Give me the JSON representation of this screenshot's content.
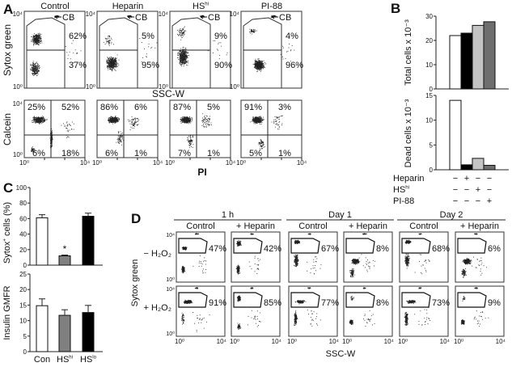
{
  "chart_data": [
    {
      "panel": "A",
      "type": "scatter",
      "columns": [
        {
          "name": "Control",
          "sup": ""
        },
        {
          "name": "Heparin",
          "sup": ""
        },
        {
          "name": "HS",
          "sup": "hi"
        },
        {
          "name": "PI-88",
          "sup": ""
        }
      ],
      "ticks": [
        "10⁰",
        "10⁴"
      ],
      "top_row": {
        "ylabel": "Sytox green",
        "xlabel": "SSC-W",
        "gate_label": "CB",
        "upper_gate": [
          "62%",
          "5%",
          "9%",
          "4%"
        ],
        "lower_gate": [
          "37%",
          "95%",
          "90%",
          "96%"
        ]
      },
      "bottom_row": {
        "ylabel": "Calcein",
        "xlabel": "PI",
        "quadrants": [
          {
            "ul": "25%",
            "ur": "52%",
            "ll": "6%",
            "lr": "18%"
          },
          {
            "ul": "86%",
            "ur": "6%",
            "ll": "6%",
            "lr": "1%"
          },
          {
            "ul": "87%",
            "ur": "5%",
            "ll": "7%",
            "lr": "1%"
          },
          {
            "ul": "91%",
            "ur": "3%",
            "ll": "5%",
            "lr": "1%"
          }
        ]
      }
    },
    {
      "panel": "B",
      "type": "bar",
      "colors": [
        "#ffffff",
        "#000000",
        "#c4c4c4",
        "#6e6e6e"
      ],
      "total": {
        "ylabel": "Total cells x 10⁻³",
        "ylim": [
          0,
          30
        ],
        "yticks": [
          "0",
          "10",
          "20",
          "30"
        ],
        "values": [
          22,
          23,
          26.2,
          27.7
        ]
      },
      "dead": {
        "ylabel": "Dead cells x 10⁻³",
        "ylim": [
          0,
          15
        ],
        "yticks": [
          "0",
          "5",
          "10",
          "15"
        ],
        "values": [
          14,
          1,
          2.3,
          0.9
        ]
      },
      "conditions": [
        {
          "name": "Heparin",
          "sup": "",
          "signs": [
            "−",
            "+",
            "−",
            "−"
          ]
        },
        {
          "name": "HS",
          "sup": "hi",
          "signs": [
            "−",
            "−",
            "+",
            "−"
          ]
        },
        {
          "name": "PI-88",
          "sup": "",
          "signs": [
            "−",
            "−",
            "−",
            "+"
          ]
        }
      ]
    },
    {
      "panel": "C",
      "type": "bar",
      "categories": [
        {
          "name": "Con",
          "sup": ""
        },
        {
          "name": "HS",
          "sup": "hi"
        },
        {
          "name": "HS",
          "sup": "lo"
        }
      ],
      "colors": [
        "#ffffff",
        "#808080",
        "#000000"
      ],
      "sytox": {
        "ylabel": "Sytox",
        "ylabel_sup": "+",
        "ylabel_rest": " cells (%)",
        "ylim": [
          0,
          100
        ],
        "yticks": [
          "0",
          "20",
          "40",
          "60",
          "80",
          "100"
        ],
        "values": [
          61,
          12,
          63
        ],
        "errors": [
          4,
          1,
          4
        ],
        "annotations": [
          "",
          "*",
          ""
        ]
      },
      "insulin": {
        "ylabel": "Insulin GMFR",
        "ylim": [
          0,
          25
        ],
        "yticks": [
          "0",
          "5",
          "10",
          "15",
          "20",
          "25"
        ],
        "values": [
          14.8,
          11.7,
          12.6
        ],
        "errors": [
          2.2,
          1.8,
          2.3
        ]
      }
    },
    {
      "panel": "D",
      "type": "scatter",
      "timepoints": [
        "1 h",
        "Day 1",
        "Day 2"
      ],
      "conditions": [
        "Control",
        "+ Heparin"
      ],
      "rows": [
        "− H₂O₂",
        "+ H₂O₂"
      ],
      "ylabel": "Sytox green",
      "xlabel": "SSC-W",
      "ticks": [
        "10⁰",
        "10⁴"
      ],
      "gate_percent": [
        [
          "47%",
          "42%",
          "67%",
          "8%",
          "68%",
          "6%"
        ],
        [
          "91%",
          "85%",
          "77%",
          "8%",
          "73%",
          "9%"
        ]
      ]
    }
  ],
  "panel_labels": [
    "A",
    "B",
    "C",
    "D"
  ]
}
